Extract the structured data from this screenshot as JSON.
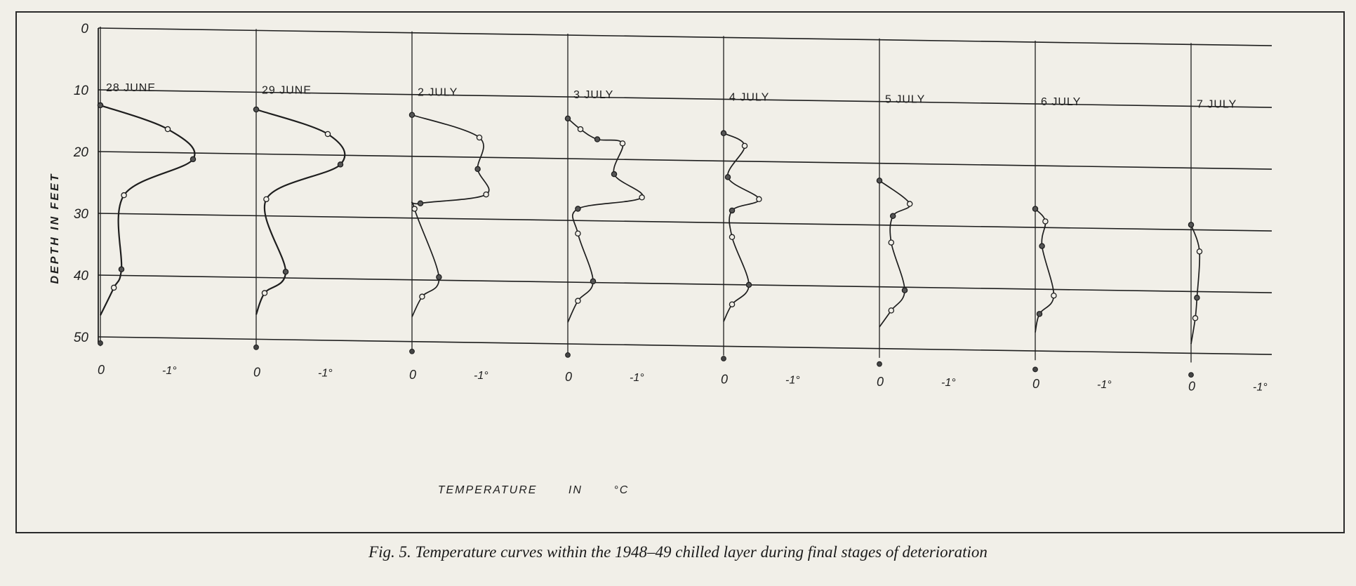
{
  "figure": {
    "caption": "Fig. 5. Temperature curves within the 1948–49 chilled layer during final stages of deterioration"
  },
  "chart_data": {
    "type": "line",
    "ylabel": "DEPTH IN FEET",
    "xlabel": "TEMPERATURE IN °C",
    "y_ticks": [
      "0",
      "10",
      "20",
      "30",
      "40",
      "50"
    ],
    "ylim": [
      0,
      50
    ],
    "y_inverted": true,
    "x_tick_labels": [
      "0",
      "-1°"
    ],
    "x_range_per_panel": [
      0,
      -1.1
    ],
    "grid": "horizontal",
    "series": [
      {
        "name": "28 JUNE",
        "points": [
          [
            0,
            12.5
          ],
          [
            -0.8,
            16.2
          ],
          [
            -1.1,
            21
          ],
          [
            -0.28,
            27
          ],
          [
            -0.25,
            39
          ],
          [
            -0.16,
            42
          ],
          [
            0,
            46.5
          ]
        ],
        "bottom_point": [
          0,
          51
        ]
      },
      {
        "name": "29 JUNE",
        "points": [
          [
            0,
            12.8
          ],
          [
            -0.85,
            16.6
          ],
          [
            -1.0,
            21.5
          ],
          [
            -0.12,
            27.3
          ],
          [
            -0.35,
            39
          ],
          [
            -0.1,
            42.5
          ],
          [
            0,
            46
          ]
        ],
        "bottom_point": [
          0,
          51.3
        ]
      },
      {
        "name": "2 JULY",
        "points": [
          [
            0,
            13.3
          ],
          [
            -0.8,
            16.8
          ],
          [
            -0.78,
            21.9
          ],
          [
            -0.88,
            26
          ],
          [
            -0.1,
            27.6
          ],
          [
            -0.03,
            28.5
          ],
          [
            -0.32,
            39.5
          ],
          [
            -0.12,
            42.7
          ],
          [
            0,
            46
          ]
        ],
        "bottom_point": [
          0,
          51.6
        ]
      },
      {
        "name": "3 JULY",
        "points": [
          [
            0,
            13.5
          ],
          [
            -0.15,
            15.2
          ],
          [
            -0.35,
            16.8
          ],
          [
            -0.65,
            17.4
          ],
          [
            -0.55,
            22.4
          ],
          [
            -0.88,
            26.1
          ],
          [
            -0.12,
            28.1
          ],
          [
            -0.12,
            32.1
          ],
          [
            -0.3,
            39.8
          ],
          [
            -0.12,
            43
          ],
          [
            0,
            46.5
          ]
        ],
        "bottom_point": [
          0,
          51.8
        ]
      },
      {
        "name": "4 JULY",
        "points": [
          [
            0,
            15.5
          ],
          [
            -0.25,
            17.5
          ],
          [
            -0.05,
            22.6
          ],
          [
            -0.42,
            26.1
          ],
          [
            -0.1,
            28
          ],
          [
            -0.1,
            32.3
          ],
          [
            -0.3,
            40
          ],
          [
            -0.1,
            43.2
          ],
          [
            0,
            46
          ]
        ],
        "bottom_point": [
          0,
          52
        ]
      },
      {
        "name": "5 JULY",
        "points": [
          [
            0,
            22.8
          ],
          [
            -0.36,
            26.5
          ],
          [
            -0.16,
            28.5
          ],
          [
            -0.14,
            32.8
          ],
          [
            -0.3,
            40.5
          ],
          [
            -0.14,
            43.8
          ],
          [
            0,
            46.5
          ]
        ],
        "bottom_point": [
          0,
          52.5
        ]
      },
      {
        "name": "6 JULY",
        "points": [
          [
            0,
            27
          ],
          [
            -0.12,
            29
          ],
          [
            -0.08,
            33
          ],
          [
            -0.22,
            41
          ],
          [
            -0.05,
            44
          ],
          [
            0,
            47
          ]
        ],
        "bottom_point": [
          0,
          53
        ]
      },
      {
        "name": "7 JULY",
        "points": [
          [
            0,
            29.2
          ],
          [
            -0.1,
            33.5
          ],
          [
            -0.07,
            41
          ],
          [
            -0.05,
            44.3
          ],
          [
            0,
            48.5
          ]
        ],
        "bottom_point": [
          0,
          53.5
        ]
      }
    ]
  }
}
